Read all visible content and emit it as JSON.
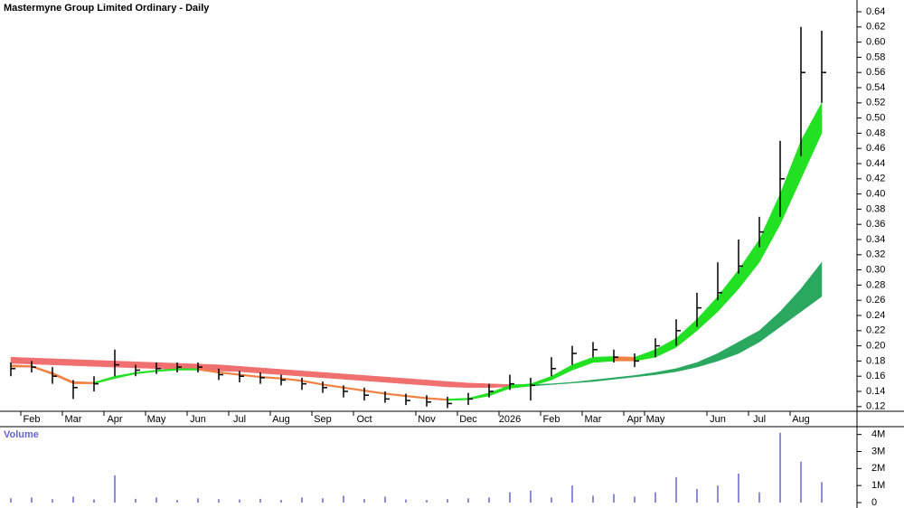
{
  "chart_data": {
    "type": "ohlc",
    "title": "Mastermyne Group Limited Ordinary - Daily",
    "categories": [
      null,
      "Feb",
      null,
      "Mar",
      null,
      "Apr",
      null,
      "May",
      null,
      "Jun",
      null,
      "Jul",
      null,
      "Aug",
      null,
      "Sep",
      null,
      "Oct",
      null,
      null,
      "Nov",
      null,
      "Dec",
      null,
      "2026",
      null,
      "Feb",
      null,
      "Mar",
      null,
      "Apr",
      "May",
      null,
      null,
      "Jun",
      null,
      "Jul",
      null,
      "Aug",
      null
    ],
    "high": [
      0.178,
      0.18,
      0.172,
      0.155,
      0.16,
      0.195,
      0.175,
      0.178,
      0.178,
      0.178,
      0.17,
      0.167,
      0.165,
      0.162,
      0.158,
      0.153,
      0.148,
      0.145,
      0.14,
      0.137,
      0.135,
      0.133,
      0.138,
      0.15,
      0.162,
      0.158,
      0.185,
      0.2,
      0.205,
      0.195,
      0.19,
      0.21,
      0.235,
      0.27,
      0.31,
      0.34,
      0.37,
      0.47,
      0.62,
      0.615
    ],
    "low": [
      0.16,
      0.165,
      0.15,
      0.13,
      0.14,
      0.16,
      0.16,
      0.163,
      0.165,
      0.165,
      0.155,
      0.152,
      0.15,
      0.148,
      0.142,
      0.138,
      0.132,
      0.128,
      0.125,
      0.122,
      0.12,
      0.118,
      0.122,
      0.132,
      0.142,
      0.128,
      0.16,
      0.175,
      0.185,
      0.178,
      0.172,
      0.185,
      0.2,
      0.225,
      0.26,
      0.295,
      0.33,
      0.37,
      0.45,
      0.52
    ],
    "close": [
      0.17,
      0.172,
      0.16,
      0.145,
      0.15,
      0.175,
      0.168,
      0.17,
      0.172,
      0.172,
      0.162,
      0.16,
      0.158,
      0.155,
      0.15,
      0.145,
      0.14,
      0.135,
      0.13,
      0.128,
      0.126,
      0.124,
      0.13,
      0.14,
      0.15,
      0.148,
      0.17,
      0.19,
      0.195,
      0.185,
      0.18,
      0.2,
      0.22,
      0.25,
      0.27,
      0.305,
      0.35,
      0.42,
      0.56,
      0.56
    ],
    "bar_color": "#000000",
    "bands": [
      {
        "upper": [
          0.185,
          0.184,
          0.183,
          0.182,
          0.181,
          0.18,
          0.179,
          0.178,
          0.177,
          0.176,
          0.175,
          0.173,
          0.171,
          0.169,
          0.167,
          0.165,
          0.163,
          0.161,
          0.159,
          0.157,
          0.155,
          0.153,
          0.151,
          0.15,
          0.149,
          0.149,
          0.15,
          0.152,
          0.155,
          0.158,
          0.161,
          0.165,
          0.17,
          0.178,
          0.19,
          0.205,
          0.22,
          0.245,
          0.275,
          0.31
        ],
        "lower": [
          0.177,
          0.176,
          0.175,
          0.174,
          0.173,
          0.172,
          0.171,
          0.17,
          0.169,
          0.168,
          0.167,
          0.166,
          0.164,
          0.162,
          0.16,
          0.158,
          0.156,
          0.154,
          0.152,
          0.15,
          0.148,
          0.146,
          0.145,
          0.145,
          0.146,
          0.147,
          0.149,
          0.151,
          0.153,
          0.156,
          0.159,
          0.162,
          0.166,
          0.172,
          0.18,
          0.19,
          0.205,
          0.225,
          0.245,
          0.265
        ],
        "up_color": "#2aa860",
        "down_color": "#f07070"
      },
      {
        "upper": [
          0.175,
          0.174,
          0.165,
          0.153,
          0.152,
          0.16,
          0.165,
          0.168,
          0.17,
          0.17,
          0.166,
          0.163,
          0.16,
          0.158,
          0.155,
          0.15,
          0.146,
          0.142,
          0.138,
          0.135,
          0.132,
          0.13,
          0.131,
          0.138,
          0.148,
          0.15,
          0.16,
          0.175,
          0.185,
          0.186,
          0.185,
          0.195,
          0.21,
          0.235,
          0.265,
          0.3,
          0.34,
          0.4,
          0.47,
          0.52
        ],
        "lower": [
          0.172,
          0.172,
          0.162,
          0.15,
          0.15,
          0.157,
          0.163,
          0.166,
          0.168,
          0.168,
          0.164,
          0.161,
          0.158,
          0.156,
          0.153,
          0.148,
          0.144,
          0.14,
          0.136,
          0.133,
          0.13,
          0.128,
          0.129,
          0.134,
          0.144,
          0.147,
          0.155,
          0.168,
          0.178,
          0.18,
          0.18,
          0.185,
          0.198,
          0.22,
          0.245,
          0.275,
          0.31,
          0.36,
          0.42,
          0.48
        ],
        "up_color": "#22e022",
        "down_color": "#f08040"
      }
    ],
    "ylim": [
      0.115,
      0.655
    ],
    "yticks": [
      0.64,
      0.62,
      {
        "value": 0.6,
        "label": "0.60"
      },
      0.58,
      0.56,
      0.54,
      0.52,
      {
        "value": 0.5,
        "label": "0.50"
      },
      0.48,
      0.46,
      0.44,
      0.42,
      {
        "value": 0.4,
        "label": "0.40"
      },
      0.38,
      0.36,
      0.34,
      0.32,
      {
        "value": 0.3,
        "label": "0.30"
      },
      0.28,
      0.26,
      0.24,
      0.22,
      {
        "value": 0.2,
        "label": "0.20"
      },
      0.18,
      0.16,
      0.14,
      0.12
    ],
    "volume_label": "Volume",
    "volume": [
      250000,
      300000,
      200000,
      350000,
      180000,
      1600000,
      220000,
      300000,
      150000,
      250000,
      200000,
      180000,
      220000,
      160000,
      300000,
      250000,
      400000,
      200000,
      350000,
      180000,
      150000,
      200000,
      250000,
      300000,
      600000,
      700000,
      300000,
      1000000,
      400000,
      500000,
      350000,
      600000,
      1500000,
      800000,
      1000000,
      1700000,
      600000,
      4100000,
      2400000,
      1200000
    ],
    "volume_color": "#6666cc",
    "volume_ylim": [
      0,
      4300000
    ],
    "volume_yticks": [
      {
        "value": 4000000,
        "label": "4M"
      },
      {
        "value": 3000000,
        "label": "3M"
      },
      {
        "value": 2000000,
        "label": "2M"
      },
      {
        "value": 1000000,
        "label": "1M"
      },
      0
    ]
  }
}
